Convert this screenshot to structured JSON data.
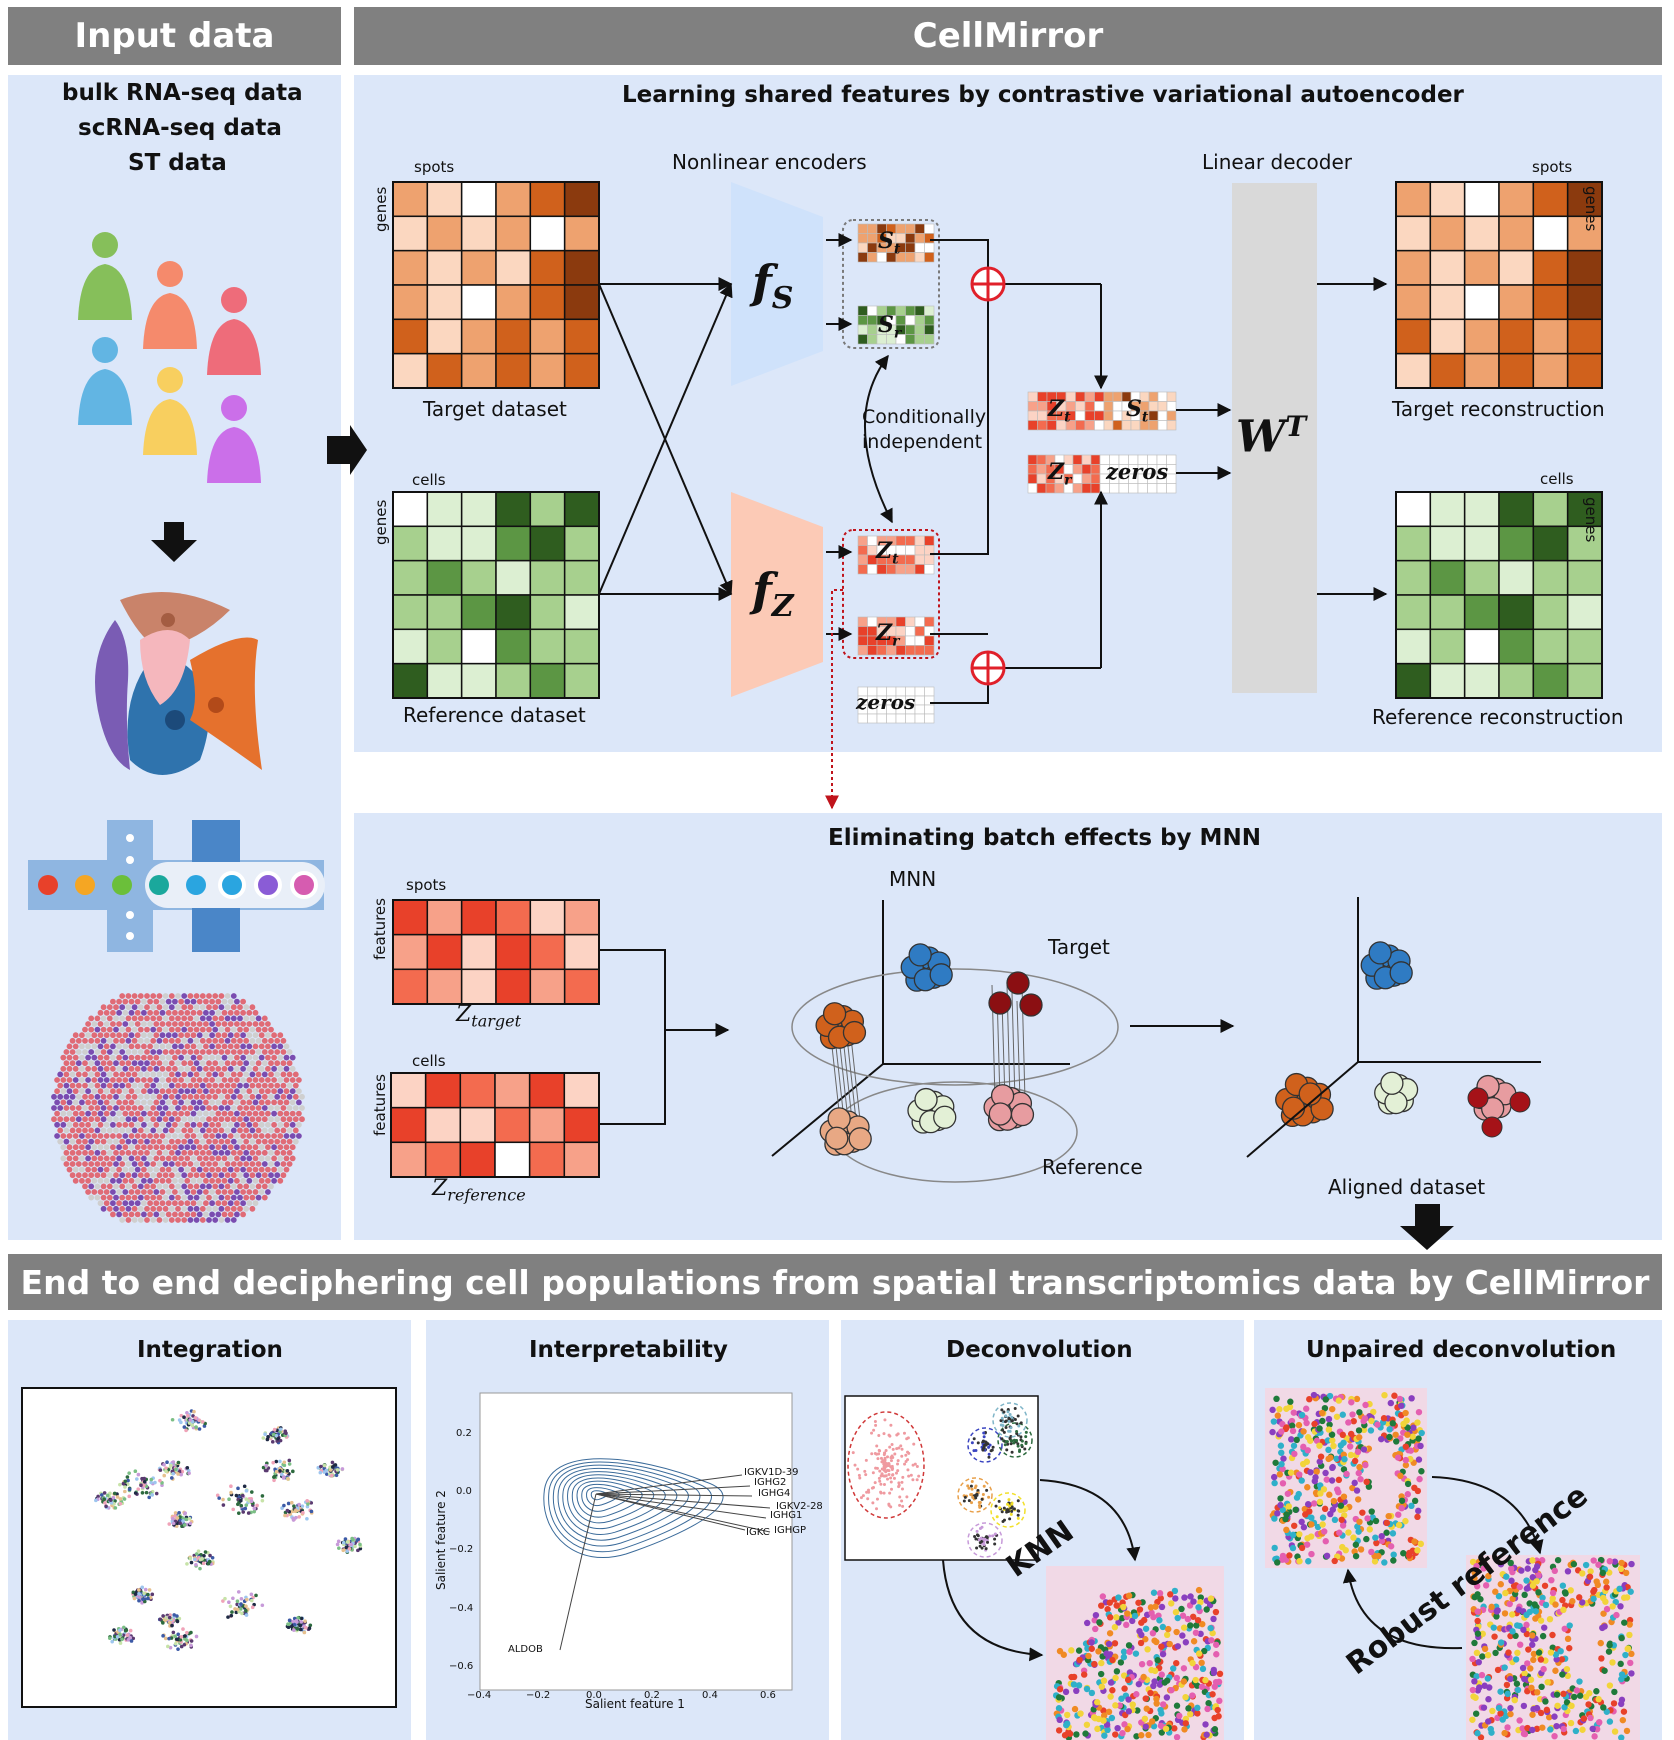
{
  "headers": {
    "input": "Input data",
    "cellmirror": "CellMirror",
    "end_to_end": "End to end deciphering cell populations from spatial transcriptomics data by CellMirror"
  },
  "input": {
    "types": [
      "bulk RNA-seq data",
      "scRNA-seq data",
      "ST data"
    ]
  },
  "cvae": {
    "title": "Learning shared features by contrastive variational autoencoder",
    "nonlinear_encoders": "Nonlinear encoders",
    "linear_decoder": "Linear decoder",
    "spots": "spots",
    "cells": "cells",
    "genes": "genes",
    "target_dataset": "Target dataset",
    "reference_dataset": "Reference dataset",
    "target_reconstruction": "Target reconstruction",
    "reference_reconstruction": "Reference reconstruction",
    "cond_indep_1": "Conditionally",
    "cond_indep_2": "independent",
    "fs": "f",
    "fs_sub": "S",
    "fz": "f",
    "fz_sub": "Z",
    "st": "S",
    "st_sub": "t",
    "sr": "S",
    "sr_sub": "r",
    "zt": "Z",
    "zt_sub": "t",
    "zr": "Z",
    "zr_sub": "r",
    "zeros": "zeros",
    "wt": "W",
    "wt_sup": "T"
  },
  "mnn": {
    "title": "Eliminating batch effects by MNN",
    "spots": "spots",
    "cells": "cells",
    "features": "features",
    "z_target": "Z",
    "z_target_sub": "target",
    "z_reference": "Z",
    "z_reference_sub": "reference",
    "mnn_label": "MNN",
    "target": "Target",
    "reference": "Reference",
    "aligned": "Aligned dataset"
  },
  "bottom": {
    "integration": "Integration",
    "interpretability": "Interpretability",
    "deconvolution": "Deconvolution",
    "unpaired": "Unpaired deconvolution",
    "knn": "KNN",
    "robust_reference": "Robust reference",
    "xlabel": "Salient feature 1",
    "ylabel": "Salient feature 2",
    "xticks": [
      "−0.4",
      "−0.2",
      "0.0",
      "0.2",
      "0.4",
      "0.6"
    ],
    "yticks": [
      "0.2",
      "0.0",
      "−0.2",
      "−0.4",
      "−0.6"
    ],
    "genes": [
      "IGKV1D-39",
      "IGHG2",
      "IGHG4",
      "IGKV2-28",
      "IGHG1",
      "IGKC",
      "IGHGP",
      "ALDOB"
    ]
  },
  "colors": {
    "header": "#808080",
    "panel": "#dce7f9",
    "orange_dark": "#8b3a0e",
    "orange": "#d0611c",
    "orange_mid": "#eea26f",
    "orange_light": "#fbd7c0",
    "green_dark": "#2f5d1f",
    "green": "#5c9644",
    "green_mid": "#a7d08e",
    "green_light": "#dcefd2",
    "red": "#e8412a",
    "encoder_s": "#cfe2fb",
    "encoder_z": "#fccab6",
    "decoder": "#d9d9d9",
    "plus": "#e0202a"
  }
}
